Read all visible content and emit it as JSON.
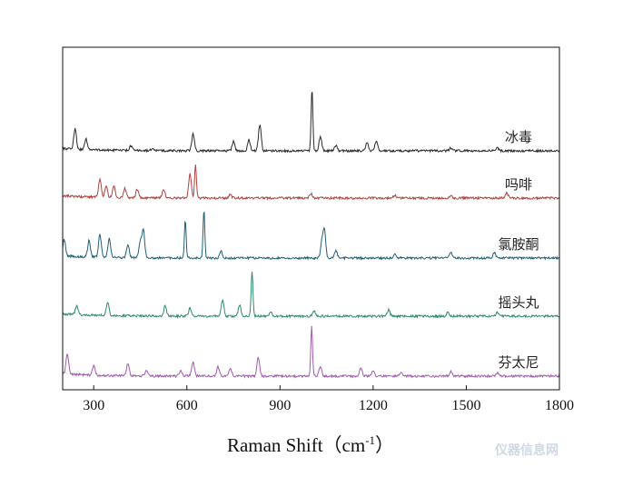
{
  "chart_data": {
    "type": "line",
    "xlabel": "Raman Shift（cm",
    "xlabel_sup": "-1",
    "xlabel_close": "）",
    "ylabel": "",
    "xlim": [
      200,
      1800
    ],
    "x_ticks": [
      300,
      600,
      900,
      1200,
      1500,
      1800
    ],
    "y_ticks_shown": false,
    "watermark": "仪器信息网",
    "series": [
      {
        "name": "冰毒",
        "color": "#2b2b2b",
        "offset": 4,
        "peaks": [
          [
            240,
            2.2
          ],
          [
            275,
            1.2
          ],
          [
            420,
            0.5
          ],
          [
            490,
            0.3
          ],
          [
            620,
            1.8
          ],
          [
            750,
            1.0
          ],
          [
            800,
            1.2
          ],
          [
            835,
            2.9
          ],
          [
            1003,
            6.8
          ],
          [
            1030,
            1.6
          ],
          [
            1080,
            0.6
          ],
          [
            1180,
            0.9
          ],
          [
            1210,
            1.1
          ],
          [
            1450,
            0.3
          ],
          [
            1600,
            0.3
          ]
        ]
      },
      {
        "name": "吗啡",
        "color": "#b0413e",
        "offset": 3,
        "peaks": [
          [
            320,
            2.0
          ],
          [
            340,
            1.3
          ],
          [
            365,
            1.2
          ],
          [
            400,
            1.0
          ],
          [
            440,
            0.9
          ],
          [
            525,
            1.0
          ],
          [
            610,
            2.6
          ],
          [
            628,
            3.7
          ],
          [
            740,
            0.4
          ],
          [
            1000,
            0.5
          ],
          [
            1270,
            0.3
          ],
          [
            1450,
            0.3
          ],
          [
            1630,
            0.6
          ]
        ]
      },
      {
        "name": "氯胺酮",
        "color": "#1f5f78",
        "offset": 2,
        "peaks": [
          [
            205,
            1.8
          ],
          [
            285,
            1.8
          ],
          [
            320,
            2.5
          ],
          [
            350,
            2.1
          ],
          [
            410,
            1.4
          ],
          [
            450,
            1.8
          ],
          [
            460,
            3.0
          ],
          [
            595,
            4.2
          ],
          [
            655,
            5.2
          ],
          [
            710,
            0.8
          ],
          [
            1035,
            1.7
          ],
          [
            1043,
            3.0
          ],
          [
            1080,
            0.8
          ],
          [
            1270,
            0.4
          ],
          [
            1450,
            0.6
          ],
          [
            1590,
            0.6
          ]
        ]
      },
      {
        "name": "摇头丸",
        "color": "#2e8b66",
        "offset": 1,
        "peaks": [
          [
            245,
            1.0
          ],
          [
            345,
            1.5
          ],
          [
            530,
            1.1
          ],
          [
            610,
            0.9
          ],
          [
            715,
            1.8
          ],
          [
            770,
            1.3
          ],
          [
            810,
            5.0
          ],
          [
            870,
            0.5
          ],
          [
            1010,
            0.5
          ],
          [
            1250,
            0.7
          ],
          [
            1440,
            0.4
          ],
          [
            1600,
            0.4
          ]
        ]
      },
      {
        "name": "芬太尼",
        "color": "#a05ab0",
        "offset": 0,
        "peaks": [
          [
            215,
            2.2
          ],
          [
            300,
            1.0
          ],
          [
            410,
            1.3
          ],
          [
            470,
            0.6
          ],
          [
            580,
            0.6
          ],
          [
            620,
            1.6
          ],
          [
            700,
            1.0
          ],
          [
            740,
            0.9
          ],
          [
            830,
            2.1
          ],
          [
            1002,
            5.4
          ],
          [
            1030,
            1.1
          ],
          [
            1160,
            0.9
          ],
          [
            1200,
            0.6
          ],
          [
            1290,
            0.4
          ],
          [
            1450,
            0.5
          ],
          [
            1600,
            0.4
          ]
        ]
      }
    ]
  }
}
